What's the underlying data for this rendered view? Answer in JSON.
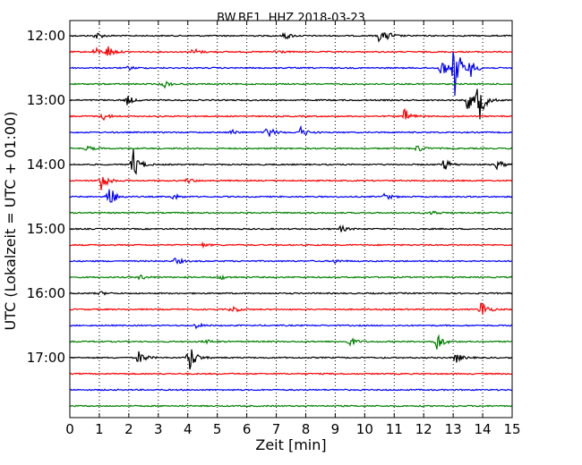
{
  "chart_data": {
    "type": "line",
    "title": "BW.BE1..HHZ 2018-03-23",
    "xlabel": "Zeit  [min]",
    "ylabel": "UTC (Lokalzeit = UTC + 01:00)",
    "xlim": [
      0,
      15
    ],
    "x_ticks": [
      "0",
      "1",
      "2",
      "3",
      "4",
      "5",
      "6",
      "7",
      "8",
      "9",
      "10",
      "11",
      "12",
      "13",
      "14",
      "15"
    ],
    "y_tick_labels": [
      "12:00",
      "13:00",
      "14:00",
      "15:00",
      "16:00",
      "17:00"
    ],
    "grid": "vertical dotted",
    "line_colors": [
      "#000000",
      "#ff0000",
      "#0000ff",
      "#008000"
    ],
    "traces": [
      {
        "start": "12:00",
        "events": [
          {
            "t": 0.9,
            "a": 0.3
          },
          {
            "t": 7.3,
            "a": 0.3
          },
          {
            "t": 10.5,
            "a": 0.5
          },
          {
            "t": 10.8,
            "a": 0.25
          }
        ]
      },
      {
        "start": "12:15",
        "events": [
          {
            "t": 0.85,
            "a": 0.35
          },
          {
            "t": 1.3,
            "a": 0.5
          },
          {
            "t": 4.2,
            "a": 0.3
          },
          {
            "t": 7.0,
            "a": 0.2
          }
        ]
      },
      {
        "start": "12:30",
        "events": [
          {
            "t": 2.0,
            "a": 0.15
          },
          {
            "t": 12.6,
            "a": 0.8
          },
          {
            "t": 13.05,
            "a": 2.5
          },
          {
            "t": 13.6,
            "a": 0.6
          }
        ]
      },
      {
        "start": "12:45",
        "events": [
          {
            "t": 3.2,
            "a": 0.3
          }
        ]
      },
      {
        "start": "13:00",
        "events": [
          {
            "t": 1.95,
            "a": 0.4
          },
          {
            "t": 13.5,
            "a": 0.8
          },
          {
            "t": 13.85,
            "a": 2.0
          }
        ]
      },
      {
        "start": "13:15",
        "events": [
          {
            "t": 1.15,
            "a": 0.3
          },
          {
            "t": 11.35,
            "a": 0.6
          }
        ]
      },
      {
        "start": "13:30",
        "events": [
          {
            "t": 5.5,
            "a": 0.2
          },
          {
            "t": 6.7,
            "a": 0.6
          },
          {
            "t": 7.8,
            "a": 0.5
          }
        ]
      },
      {
        "start": "13:45",
        "events": [
          {
            "t": 0.6,
            "a": 0.2
          },
          {
            "t": 11.8,
            "a": 0.3
          }
        ]
      },
      {
        "start": "14:00",
        "events": [
          {
            "t": 2.15,
            "a": 1.3
          },
          {
            "t": 12.7,
            "a": 0.5
          },
          {
            "t": 14.5,
            "a": 0.4
          }
        ]
      },
      {
        "start": "14:15",
        "events": [
          {
            "t": 1.05,
            "a": 1.0
          },
          {
            "t": 4.0,
            "a": 0.2
          }
        ]
      },
      {
        "start": "14:30",
        "events": [
          {
            "t": 1.3,
            "a": 1.2
          },
          {
            "t": 3.5,
            "a": 0.25
          },
          {
            "t": 10.7,
            "a": 0.3
          }
        ]
      },
      {
        "start": "14:45",
        "events": [
          {
            "t": 12.3,
            "a": 0.2
          }
        ]
      },
      {
        "start": "15:00",
        "events": [
          {
            "t": 9.2,
            "a": 0.25
          }
        ]
      },
      {
        "start": "15:15",
        "events": [
          {
            "t": 4.5,
            "a": 0.15
          }
        ]
      },
      {
        "start": "15:30",
        "events": [
          {
            "t": 3.6,
            "a": 0.3
          },
          {
            "t": 9.0,
            "a": 0.15
          }
        ]
      },
      {
        "start": "15:45",
        "events": [
          {
            "t": 2.4,
            "a": 0.2
          },
          {
            "t": 5.1,
            "a": 0.2
          }
        ]
      },
      {
        "start": "16:00",
        "events": [
          {
            "t": 1.0,
            "a": 0.15
          }
        ]
      },
      {
        "start": "16:15",
        "events": [
          {
            "t": 5.5,
            "a": 0.3
          },
          {
            "t": 13.95,
            "a": 0.8
          }
        ]
      },
      {
        "start": "16:30",
        "events": [
          {
            "t": 4.3,
            "a": 0.2
          }
        ]
      },
      {
        "start": "16:45",
        "events": [
          {
            "t": 4.6,
            "a": 0.2
          },
          {
            "t": 9.5,
            "a": 0.4
          },
          {
            "t": 12.45,
            "a": 0.8
          }
        ]
      },
      {
        "start": "17:00",
        "events": [
          {
            "t": 2.35,
            "a": 0.6
          },
          {
            "t": 4.05,
            "a": 1.3
          },
          {
            "t": 13.1,
            "a": 0.4
          }
        ]
      },
      {
        "start": "17:15",
        "events": []
      },
      {
        "start": "17:30",
        "events": []
      },
      {
        "start": "17:45",
        "events": []
      }
    ]
  }
}
